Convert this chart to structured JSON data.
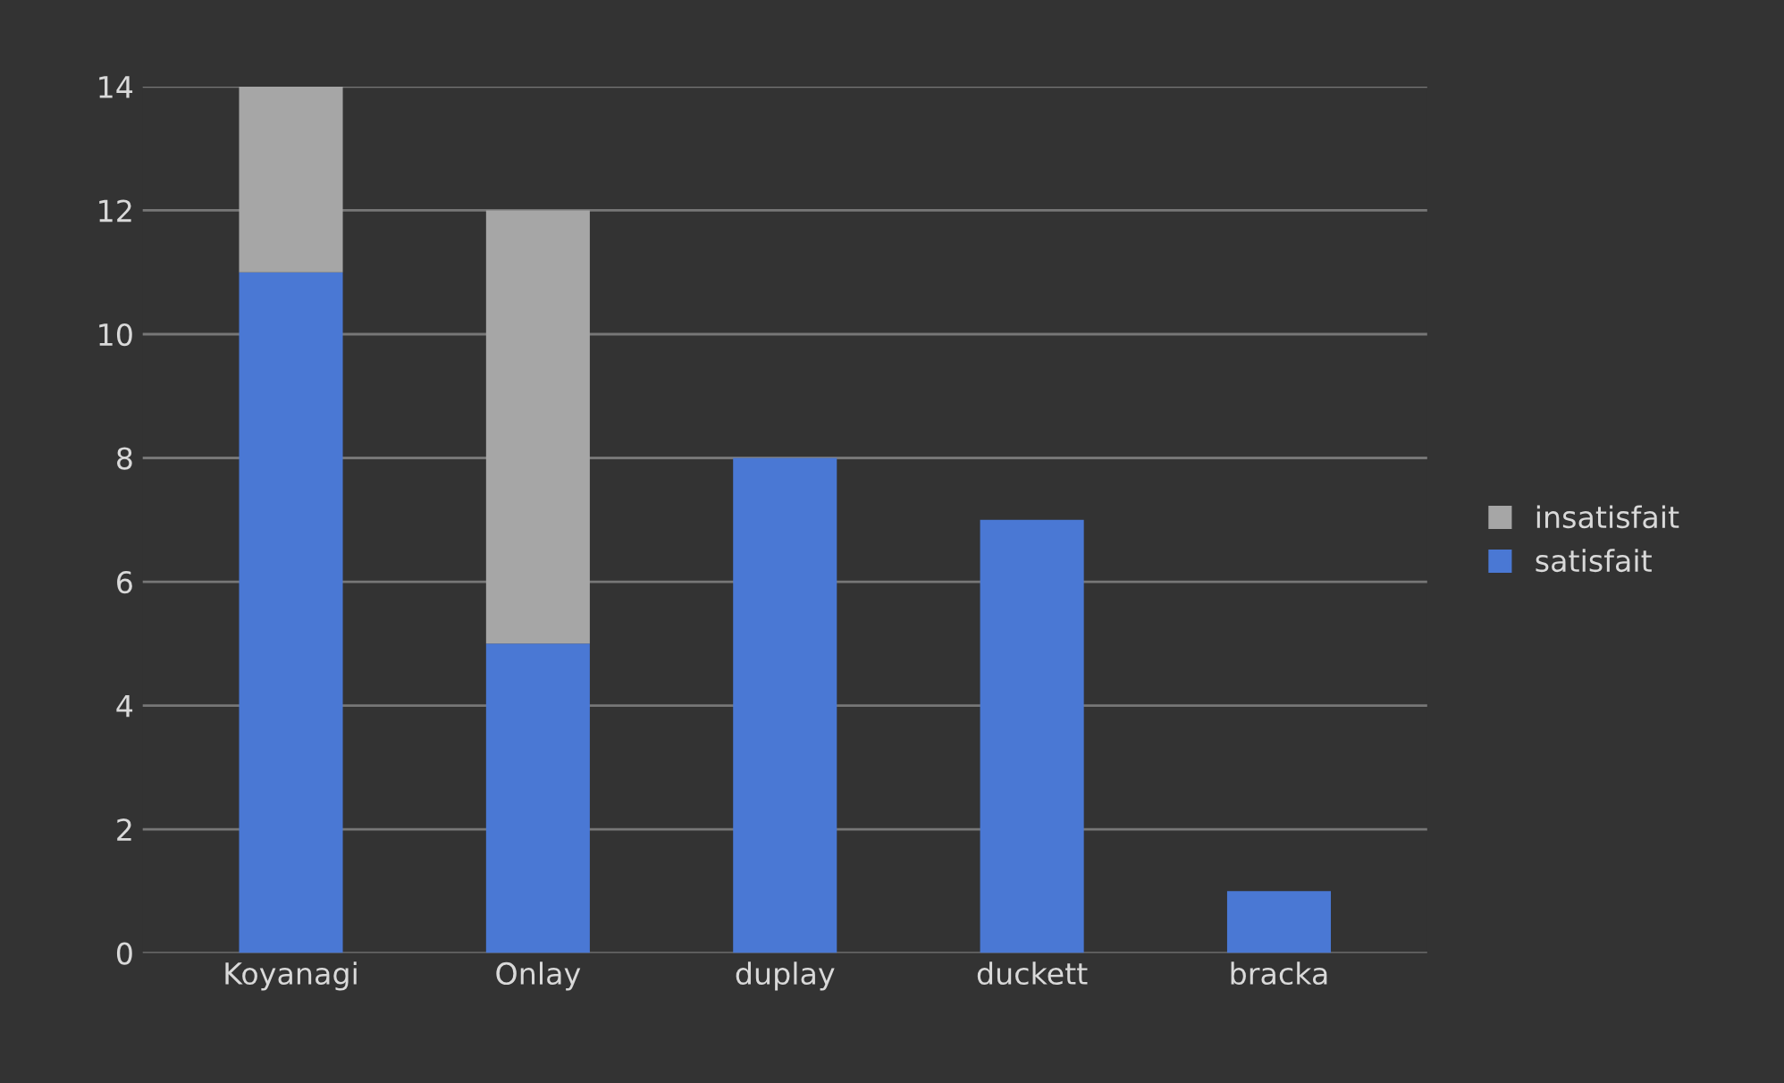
{
  "chart_data": {
    "type": "bar",
    "stacked": true,
    "categories": [
      "Koyanagi",
      "Onlay",
      "duplay",
      "duckett",
      "bracka"
    ],
    "series": [
      {
        "name": "satisfait",
        "color": "#4a78d4",
        "values": [
          11,
          5,
          8,
          7,
          1
        ]
      },
      {
        "name": "insatisfait",
        "color": "#a6a6a6",
        "values": [
          3,
          7,
          null,
          null,
          null
        ]
      }
    ],
    "ylim": [
      0,
      14
    ],
    "yticks": [
      0,
      2,
      4,
      6,
      8,
      10,
      12,
      14
    ],
    "grid": "y",
    "legend": "right"
  }
}
